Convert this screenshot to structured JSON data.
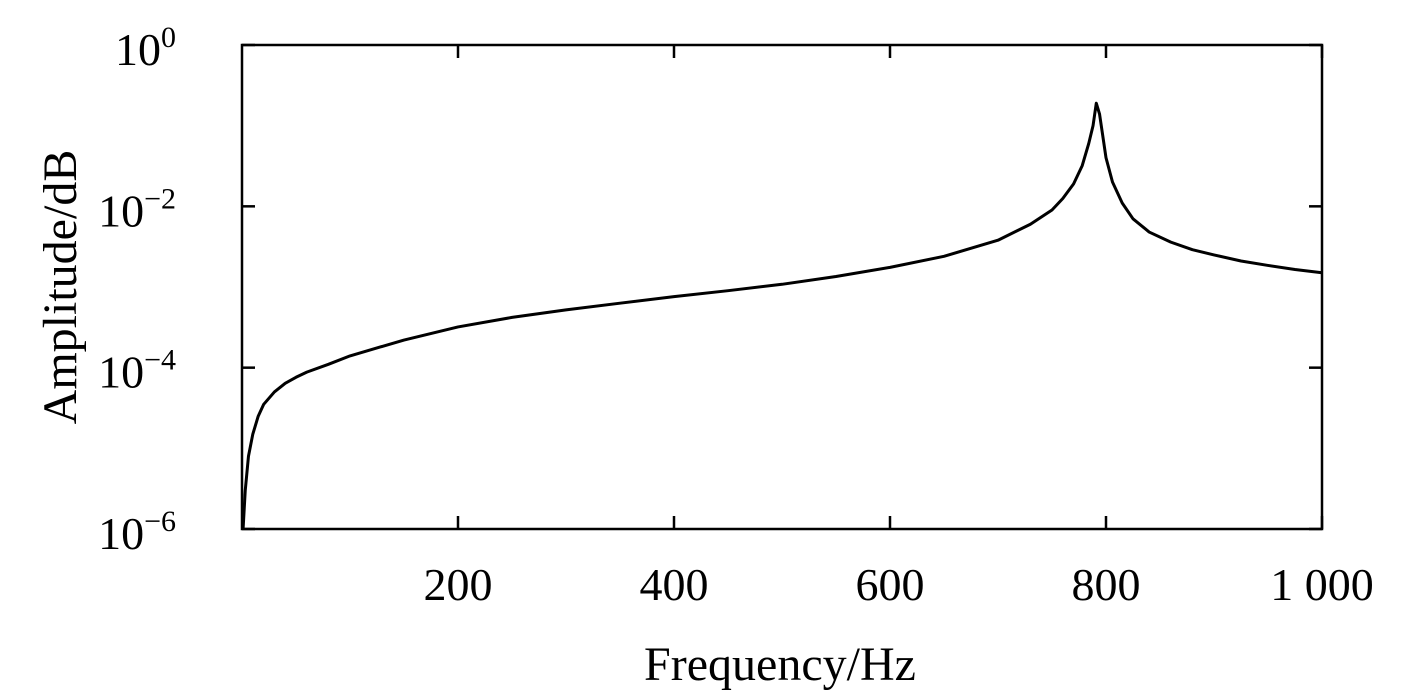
{
  "chart_data": {
    "type": "line",
    "xlabel": "Frequency/Hz",
    "ylabel": "Amplitude/dB",
    "xlim": [
      0,
      1000
    ],
    "ylim": [
      1e-06,
      1
    ],
    "y_scale": "log",
    "grid": false,
    "x_ticks": [
      200,
      400,
      600,
      800,
      1000
    ],
    "x_tick_labels": [
      "200",
      "400",
      "600",
      "800",
      "1 000"
    ],
    "y_ticks": [
      {
        "value": 1e-06,
        "base": "10",
        "exp": "−6"
      },
      {
        "value": 0.0001,
        "base": "10",
        "exp": "−4"
      },
      {
        "value": 0.01,
        "base": "10",
        "exp": "−2"
      },
      {
        "value": 1,
        "base": "10",
        "exp": "0"
      }
    ],
    "series": [
      {
        "color": "#000000",
        "x": [
          1,
          3,
          6,
          10,
          15,
          20,
          30,
          40,
          50,
          60,
          80,
          100,
          150,
          200,
          250,
          300,
          350,
          400,
          450,
          500,
          550,
          600,
          650,
          700,
          730,
          750,
          760,
          770,
          778,
          784,
          788,
          791,
          794,
          797,
          800,
          806,
          815,
          825,
          840,
          860,
          880,
          900,
          925,
          950,
          975,
          1000
        ],
        "y": [
          1e-06,
          3e-06,
          8e-06,
          1.5e-05,
          2.5e-05,
          3.5e-05,
          5e-05,
          6.4e-05,
          7.6e-05,
          8.8e-05,
          0.00011,
          0.00014,
          0.00022,
          0.00032,
          0.00042,
          0.00052,
          0.00063,
          0.00076,
          0.0009,
          0.00108,
          0.00135,
          0.00175,
          0.0024,
          0.0038,
          0.006,
          0.009,
          0.0125,
          0.019,
          0.032,
          0.06,
          0.1,
          0.19,
          0.14,
          0.075,
          0.04,
          0.02,
          0.011,
          0.007,
          0.0048,
          0.0036,
          0.0029,
          0.0025,
          0.0021,
          0.00185,
          0.00165,
          0.0015
        ]
      }
    ]
  }
}
